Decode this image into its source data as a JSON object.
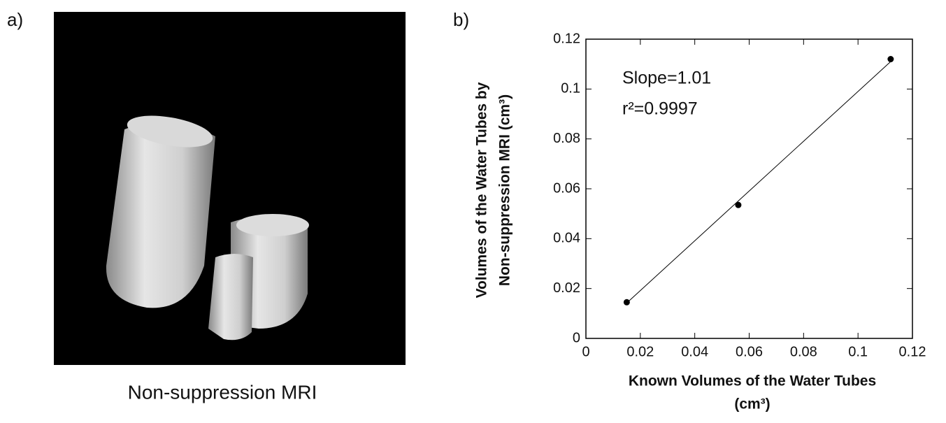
{
  "panel_a": {
    "label": "a)",
    "caption": "Non-suppression MRI"
  },
  "chart_data": {
    "type": "scatter",
    "panel_label": "b)",
    "points": {
      "x": [
        0.015,
        0.056,
        0.112
      ],
      "y": [
        0.0145,
        0.0535,
        0.112
      ]
    },
    "fit_line": {
      "x": [
        0.015,
        0.112
      ],
      "y": [
        0.0142,
        0.111
      ]
    },
    "annotations": [
      "Slope=1.01",
      "r²=0.9997"
    ],
    "xlabel": [
      "Known Volumes of the Water Tubes",
      "(cm³)"
    ],
    "ylabel": [
      "Volumes of the Water Tubes by",
      "Non-suppression MRI (cm³)"
    ],
    "xlim": [
      0,
      0.12
    ],
    "ylim": [
      0,
      0.12
    ],
    "xticks": [
      0,
      0.02,
      0.04,
      0.06,
      0.08,
      0.1,
      0.12
    ],
    "yticks": [
      0,
      0.02,
      0.04,
      0.06,
      0.08,
      0.1,
      0.12
    ],
    "color": "#000000"
  }
}
